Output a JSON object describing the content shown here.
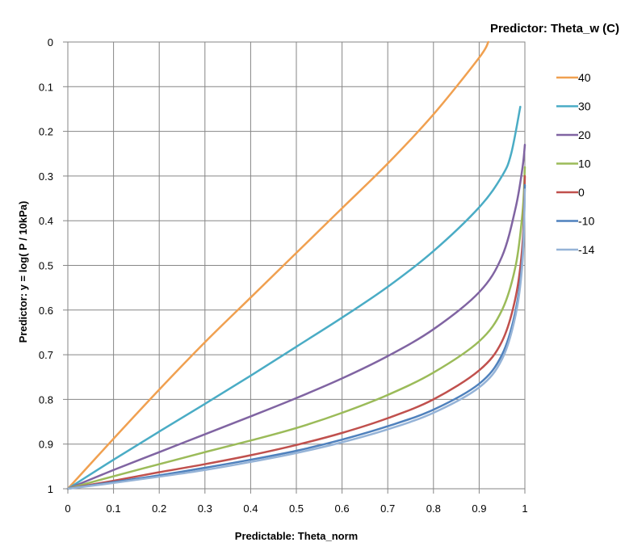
{
  "chart_data": {
    "type": "line",
    "xlabel": "Predictable:  Theta_norm",
    "ylabel": "Predictor:  y = log( P / 10kPa)",
    "legend_title": "Predictor:  Theta_w (C)",
    "legend_position": "right",
    "xlim": [
      0,
      1
    ],
    "ylim": [
      0,
      1
    ],
    "y_reversed": true,
    "grid": true,
    "x_ticks": [
      "0",
      "0.1",
      "0.2",
      "0.3",
      "0.4",
      "0.5",
      "0.6",
      "0.7",
      "0.8",
      "0.9",
      "1"
    ],
    "y_ticks": [
      "0",
      "0.1",
      "0.2",
      "0.3",
      "0.4",
      "0.5",
      "0.6",
      "0.7",
      "0.8",
      "0.9",
      "1"
    ],
    "series": [
      {
        "name": "40",
        "color": "#f0a050",
        "points": [
          [
            0,
            1
          ],
          [
            0.1,
            0.888
          ],
          [
            0.2,
            0.778
          ],
          [
            0.3,
            0.672
          ],
          [
            0.4,
            0.572
          ],
          [
            0.5,
            0.472
          ],
          [
            0.6,
            0.372
          ],
          [
            0.7,
            0.272
          ],
          [
            0.8,
            0.162
          ],
          [
            0.9,
            0.035
          ],
          [
            0.92,
            0
          ]
        ]
      },
      {
        "name": "30",
        "color": "#4aacc5",
        "points": [
          [
            0,
            1
          ],
          [
            0.1,
            0.935
          ],
          [
            0.2,
            0.872
          ],
          [
            0.3,
            0.81
          ],
          [
            0.4,
            0.747
          ],
          [
            0.5,
            0.682
          ],
          [
            0.6,
            0.617
          ],
          [
            0.7,
            0.548
          ],
          [
            0.8,
            0.468
          ],
          [
            0.9,
            0.37
          ],
          [
            0.95,
            0.3
          ],
          [
            0.97,
            0.25
          ],
          [
            0.99,
            0.145
          ]
        ]
      },
      {
        "name": "20",
        "color": "#8064a2",
        "points": [
          [
            0,
            1
          ],
          [
            0.1,
            0.958
          ],
          [
            0.2,
            0.918
          ],
          [
            0.3,
            0.878
          ],
          [
            0.4,
            0.838
          ],
          [
            0.5,
            0.797
          ],
          [
            0.6,
            0.753
          ],
          [
            0.7,
            0.703
          ],
          [
            0.8,
            0.643
          ],
          [
            0.9,
            0.56
          ],
          [
            0.95,
            0.48
          ],
          [
            0.98,
            0.37
          ],
          [
            0.995,
            0.28
          ],
          [
            1,
            0.23
          ]
        ]
      },
      {
        "name": "10",
        "color": "#9bbb59",
        "points": [
          [
            0,
            1
          ],
          [
            0.1,
            0.972
          ],
          [
            0.2,
            0.945
          ],
          [
            0.3,
            0.918
          ],
          [
            0.4,
            0.892
          ],
          [
            0.5,
            0.864
          ],
          [
            0.6,
            0.83
          ],
          [
            0.7,
            0.79
          ],
          [
            0.8,
            0.74
          ],
          [
            0.9,
            0.67
          ],
          [
            0.95,
            0.6
          ],
          [
            0.98,
            0.5
          ],
          [
            0.995,
            0.38
          ],
          [
            1,
            0.28
          ]
        ]
      },
      {
        "name": "0",
        "color": "#c0504d",
        "points": [
          [
            0,
            1
          ],
          [
            0.1,
            0.982
          ],
          [
            0.2,
            0.963
          ],
          [
            0.3,
            0.945
          ],
          [
            0.4,
            0.925
          ],
          [
            0.5,
            0.902
          ],
          [
            0.6,
            0.875
          ],
          [
            0.7,
            0.842
          ],
          [
            0.8,
            0.8
          ],
          [
            0.9,
            0.735
          ],
          [
            0.95,
            0.67
          ],
          [
            0.98,
            0.57
          ],
          [
            0.995,
            0.45
          ],
          [
            1,
            0.3
          ]
        ]
      },
      {
        "name": "-10",
        "color": "#4f81bd",
        "points": [
          [
            0,
            1
          ],
          [
            0.1,
            0.985
          ],
          [
            0.2,
            0.97
          ],
          [
            0.3,
            0.953
          ],
          [
            0.4,
            0.935
          ],
          [
            0.5,
            0.915
          ],
          [
            0.6,
            0.89
          ],
          [
            0.7,
            0.86
          ],
          [
            0.8,
            0.823
          ],
          [
            0.9,
            0.765
          ],
          [
            0.95,
            0.7
          ],
          [
            0.98,
            0.6
          ],
          [
            0.995,
            0.48
          ],
          [
            1,
            0.32
          ]
        ]
      },
      {
        "name": "-14",
        "color": "#95b3d7",
        "points": [
          [
            0,
            1
          ],
          [
            0.1,
            0.987
          ],
          [
            0.2,
            0.973
          ],
          [
            0.3,
            0.958
          ],
          [
            0.4,
            0.94
          ],
          [
            0.5,
            0.92
          ],
          [
            0.6,
            0.896
          ],
          [
            0.7,
            0.867
          ],
          [
            0.8,
            0.83
          ],
          [
            0.9,
            0.773
          ],
          [
            0.95,
            0.71
          ],
          [
            0.98,
            0.61
          ],
          [
            0.995,
            0.49
          ],
          [
            1,
            0.33
          ]
        ]
      }
    ]
  }
}
